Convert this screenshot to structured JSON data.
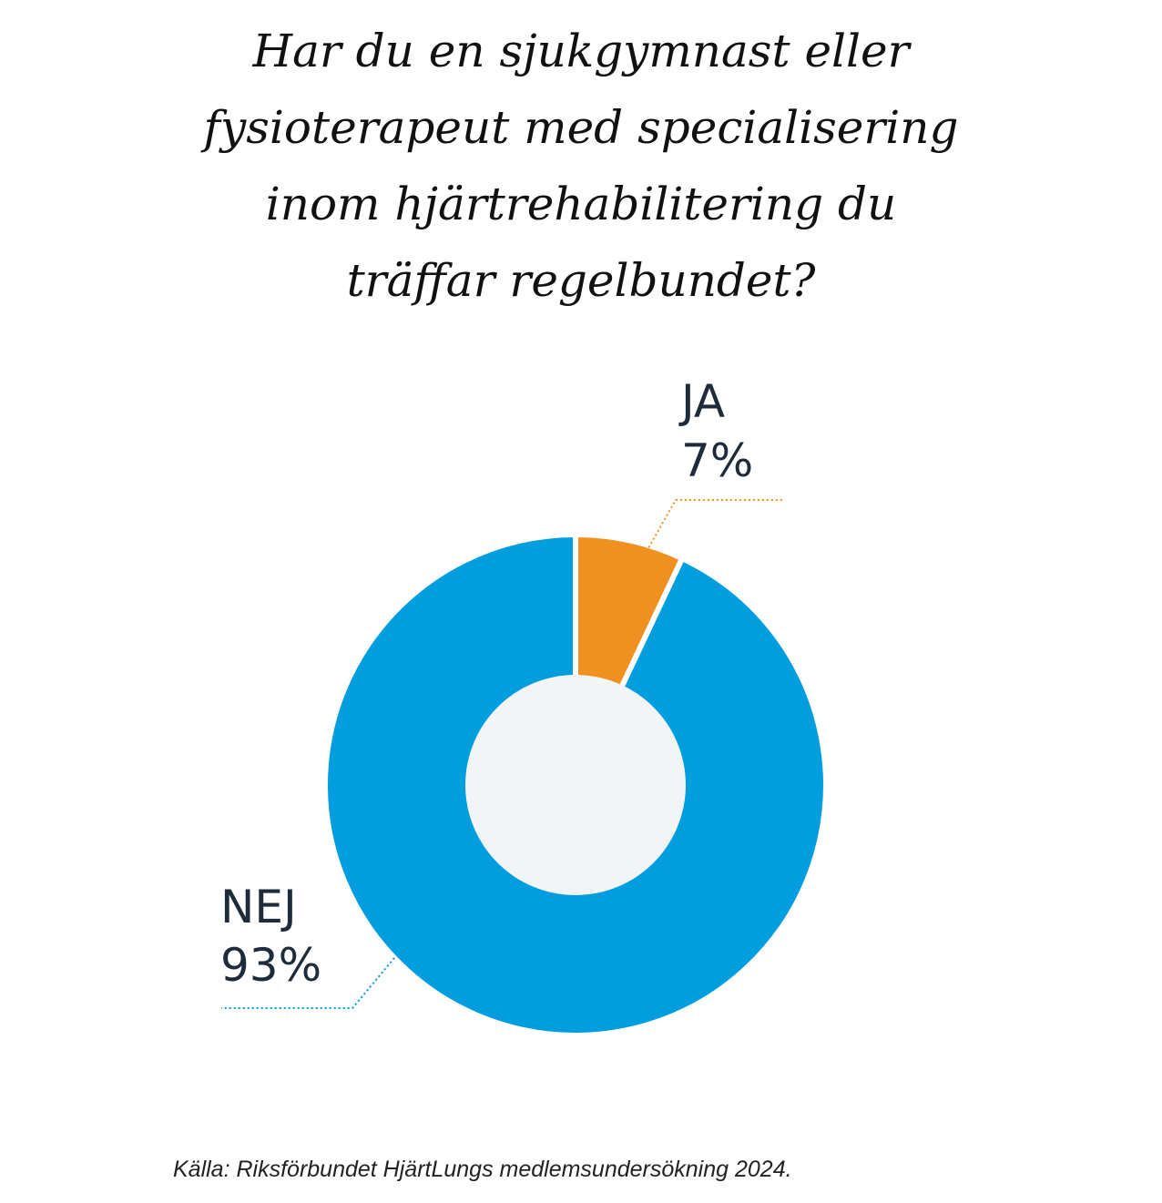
{
  "chart_data": {
    "type": "pie",
    "variant": "donut",
    "title": "Har du en sjukgymnast eller fysioterapeut med specialisering inom hjärtrehabilitering du träffar regelbundet?",
    "title_lines": [
      "Har du en sjukgymnast eller",
      "fysioterapeut med specialisering",
      "inom hjärtrehabilitering du",
      "träffar regelbundet?"
    ],
    "slices": [
      {
        "label": "JA",
        "value": 7,
        "value_label": "7%",
        "color": "#f0901e"
      },
      {
        "label": "NEJ",
        "value": 93,
        "value_label": "93%",
        "color": "#009ddf"
      }
    ],
    "center_color": "#f2f5f6",
    "source": "Källa: Riksförbundet HjärtLungs medlemsundersökning 2024."
  }
}
